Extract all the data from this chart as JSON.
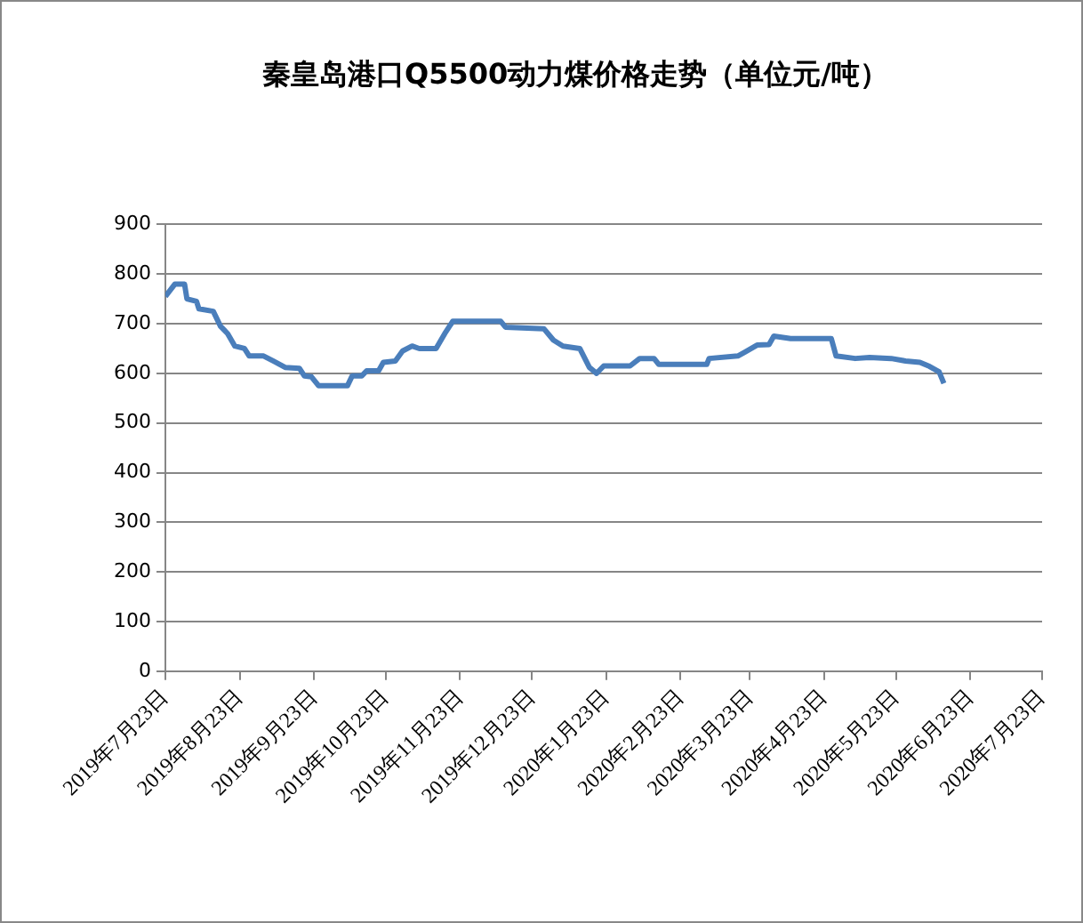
{
  "chart_data": {
    "type": "line",
    "title": "秦皇岛港口Q5500动力煤价格走势（单位元/吨）",
    "x": [
      "2019-07-23",
      "2019-07-27",
      "2019-07-31",
      "2019-08-01",
      "2019-08-05",
      "2019-08-06",
      "2019-08-12",
      "2019-08-15",
      "2019-08-18",
      "2019-08-21",
      "2019-08-25",
      "2019-08-27",
      "2019-09-02",
      "2019-09-06",
      "2019-09-11",
      "2019-09-17",
      "2019-09-19",
      "2019-09-22",
      "2019-09-25",
      "2019-10-07",
      "2019-10-09",
      "2019-10-13",
      "2019-10-15",
      "2019-10-20",
      "2019-10-22",
      "2019-10-27",
      "2019-10-30",
      "2019-11-03",
      "2019-11-06",
      "2019-11-13",
      "2019-11-17",
      "2019-11-20",
      "2019-12-10",
      "2019-12-12",
      "2019-12-28",
      "2020-01-01",
      "2020-01-05",
      "2020-01-12",
      "2020-01-16",
      "2020-01-19",
      "2020-01-22",
      "2020-02-02",
      "2020-02-06",
      "2020-02-12",
      "2020-02-14",
      "2020-03-05",
      "2020-03-06",
      "2020-03-18",
      "2020-03-21",
      "2020-03-26",
      "2020-03-31",
      "2020-04-02",
      "2020-04-09",
      "2020-04-26",
      "2020-04-28",
      "2020-05-06",
      "2020-05-12",
      "2020-05-21",
      "2020-05-27",
      "2020-06-02",
      "2020-06-06",
      "2020-06-10",
      "2020-06-12"
    ],
    "series": [
      {
        "color": "#4a7ebb",
        "values": [
          755,
          780,
          780,
          750,
          745,
          730,
          725,
          695,
          680,
          655,
          650,
          635,
          635,
          625,
          612,
          610,
          595,
          593,
          575,
          575,
          595,
          595,
          605,
          605,
          622,
          625,
          645,
          655,
          650,
          650,
          683,
          705,
          705,
          693,
          690,
          667,
          655,
          650,
          612,
          600,
          615,
          615,
          630,
          630,
          618,
          618,
          630,
          635,
          643,
          657,
          658,
          675,
          670,
          670,
          635,
          630,
          632,
          630,
          625,
          622,
          614,
          603,
          580
        ]
      }
    ],
    "xlim": [
      "2019-07-23",
      "2020-07-23"
    ],
    "xticks": [
      {
        "value": "2019-07-23",
        "label": "2019年7月23日"
      },
      {
        "value": "2019-08-23",
        "label": "2019年8月23日"
      },
      {
        "value": "2019-09-23",
        "label": "2019年9月23日"
      },
      {
        "value": "2019-10-23",
        "label": "2019年10月23日"
      },
      {
        "value": "2019-11-23",
        "label": "2019年11月23日"
      },
      {
        "value": "2019-12-23",
        "label": "2019年12月23日"
      },
      {
        "value": "2020-01-23",
        "label": "2020年1月23日"
      },
      {
        "value": "2020-02-23",
        "label": "2020年2月23日"
      },
      {
        "value": "2020-03-23",
        "label": "2020年3月23日"
      },
      {
        "value": "2020-04-23",
        "label": "2020年4月23日"
      },
      {
        "value": "2020-05-23",
        "label": "2020年5月23日"
      },
      {
        "value": "2020-06-23",
        "label": "2020年6月23日"
      },
      {
        "value": "2020-07-23",
        "label": "2020年7月23日"
      }
    ],
    "ylim": [
      0,
      900
    ],
    "yticks": [
      0,
      100,
      200,
      300,
      400,
      500,
      600,
      700,
      800,
      900
    ],
    "grid": "y",
    "legend": false,
    "marker": "none",
    "line_style": "solid"
  }
}
